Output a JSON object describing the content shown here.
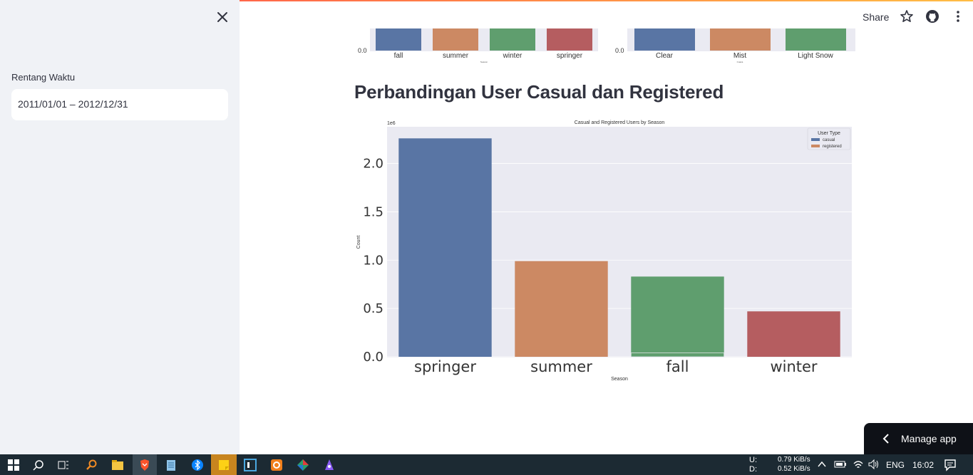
{
  "sidebar": {
    "date_label": "Rentang Waktu",
    "date_value": "2011/01/01 – 2012/12/31"
  },
  "header": {
    "share_label": "Share"
  },
  "main": {
    "section_title": "Perbandingan User Casual dan Registered"
  },
  "chart_data": [
    {
      "type": "bar",
      "xlabel": "Season",
      "categories": [
        "fall",
        "summer",
        "winter",
        "springer"
      ],
      "series": [
        {
          "values": [
            null,
            null,
            null,
            null
          ]
        }
      ],
      "yticks": [
        "0.0"
      ],
      "note": "partially visible (cropped at top)"
    },
    {
      "type": "bar",
      "xlabel": "Cuaca",
      "categories": [
        "Clear",
        "Mist",
        "Light Snow"
      ],
      "series": [
        {
          "values": [
            null,
            null,
            null
          ]
        }
      ],
      "yticks": [
        "0.0"
      ]
    },
    {
      "type": "bar",
      "title": "Casual and Registered Users by Season",
      "xlabel": "Season",
      "ylabel": "Count",
      "scale_label": "1e6",
      "categories": [
        "springer",
        "summer",
        "fall",
        "winter"
      ],
      "series": [
        {
          "name": "casual",
          "values": [
            2.26,
            0.99,
            0.83,
            0.47
          ]
        },
        {
          "name": "registered",
          "values": [
            0.0,
            0.0,
            0.04,
            0.0
          ]
        }
      ],
      "ylim": [
        0,
        2.38
      ],
      "yticks": [
        "0.0",
        "0.5",
        "1.0",
        "1.5",
        "2.0"
      ],
      "legend": {
        "title": "User Type",
        "placement": "top-right"
      },
      "colors": [
        "#5975a4",
        "#cc8963",
        "#5f9e6e",
        "#b55d60"
      ]
    }
  ],
  "manage_app": {
    "label": "Manage app"
  },
  "taskbar": {
    "net_up_label": "U:",
    "net_up": "0.79 KiB/s",
    "net_down_label": "D:",
    "net_down": "0.52 KiB/s",
    "lang": "ENG",
    "time": "16:02"
  }
}
